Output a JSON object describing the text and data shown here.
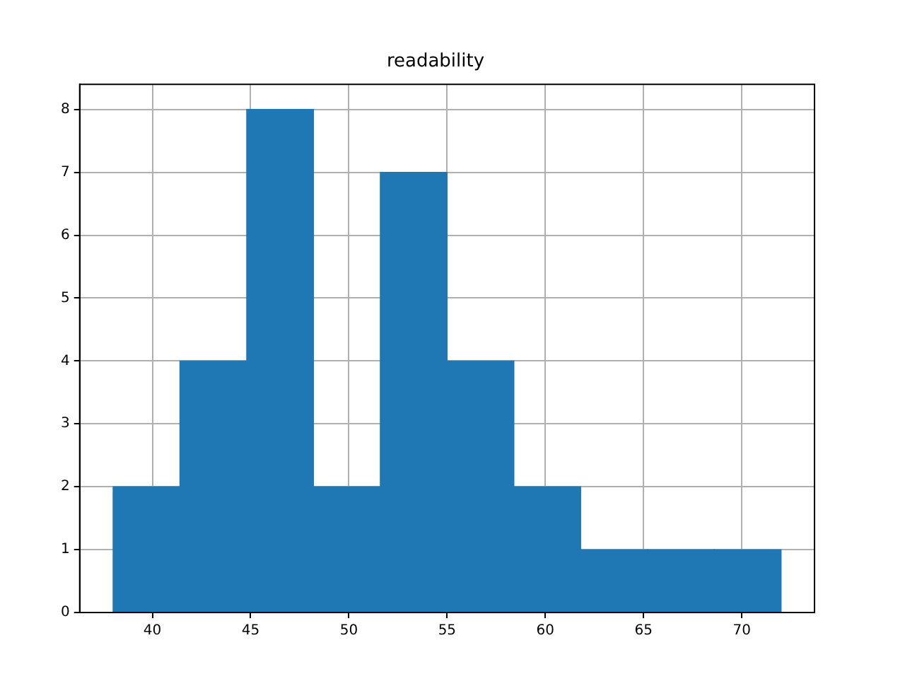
{
  "chart_data": {
    "type": "histogram",
    "title": "readability",
    "bins": [
      38,
      41.4,
      44.8,
      48.2,
      51.6,
      55,
      58.4,
      61.8,
      65.2,
      68.6,
      72
    ],
    "values": [
      2,
      4,
      8,
      2,
      7,
      4,
      2,
      1,
      1,
      1
    ],
    "color": "#1f77b4",
    "xlim": [
      36.3,
      73.7
    ],
    "xticks": [
      40,
      45,
      50,
      55,
      60,
      65,
      70
    ],
    "ylim": [
      0,
      8.4
    ],
    "yticks": [
      0,
      1,
      2,
      3,
      4,
      5,
      6,
      7,
      8
    ],
    "grid": true
  }
}
